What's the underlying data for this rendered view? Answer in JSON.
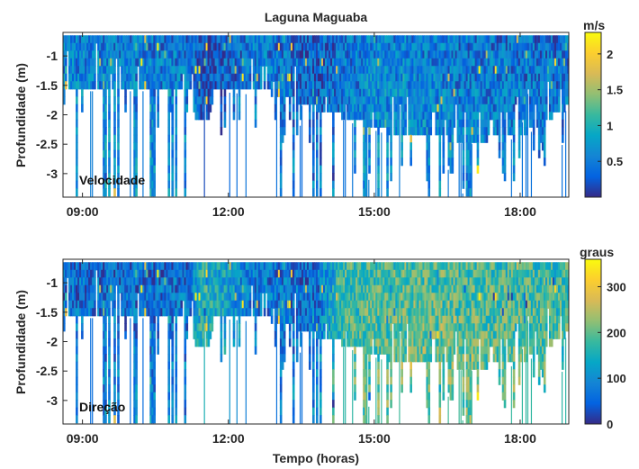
{
  "chart_data": [
    {
      "type": "heatmap",
      "title": "Laguna Maguaba",
      "xlabel": "",
      "ylabel": "Profundidade (m)",
      "annotation": "Velocidade",
      "x_ticks": [
        "09:00",
        "12:00",
        "15:00",
        "18:00"
      ],
      "x_tick_hours": [
        9,
        12,
        15,
        18
      ],
      "xlim_hours": [
        8.6,
        19.0
      ],
      "y_ticks": [
        -1,
        -1.5,
        -2,
        -2.5,
        -3
      ],
      "ylim": [
        -3.4,
        -0.6
      ],
      "colorbar": {
        "label": "m/s",
        "ticks": [
          0.5,
          1,
          1.5,
          2
        ],
        "range": [
          0,
          2.3
        ],
        "colormap": "parula"
      },
      "depth_extent_profile": [
        {
          "hour": 8.6,
          "min_depth": -1.6
        },
        {
          "hour": 11.2,
          "min_depth": -1.6
        },
        {
          "hour": 11.3,
          "min_depth": -2.1
        },
        {
          "hour": 11.6,
          "min_depth": -2.1
        },
        {
          "hour": 11.7,
          "min_depth": -1.6
        },
        {
          "hour": 13.0,
          "min_depth": -1.7
        },
        {
          "hour": 14.0,
          "min_depth": -2.0
        },
        {
          "hour": 15.5,
          "min_depth": -2.4
        },
        {
          "hour": 17.0,
          "min_depth": -2.5
        },
        {
          "hour": 18.0,
          "min_depth": -2.4
        },
        {
          "hour": 19.0,
          "min_depth": -1.9
        }
      ],
      "value_profile": [
        {
          "hour": 8.6,
          "value": 0.55
        },
        {
          "hour": 11.2,
          "value": 0.45
        },
        {
          "hour": 11.45,
          "value": 0.15
        },
        {
          "hour": 12.5,
          "value": 0.5
        },
        {
          "hour": 13.8,
          "value": 0.3
        },
        {
          "hour": 15.0,
          "value": 0.55
        },
        {
          "hour": 17.0,
          "value": 0.45
        },
        {
          "hour": 19.0,
          "value": 0.4
        }
      ]
    },
    {
      "type": "heatmap",
      "title": "",
      "xlabel": "Tempo (horas)",
      "ylabel": "Profundidade (m)",
      "annotation": "Direção",
      "x_ticks": [
        "09:00",
        "12:00",
        "15:00",
        "18:00"
      ],
      "x_tick_hours": [
        9,
        12,
        15,
        18
      ],
      "xlim_hours": [
        8.6,
        19.0
      ],
      "y_ticks": [
        -1,
        -1.5,
        -2,
        -2.5,
        -3
      ],
      "ylim": [
        -3.4,
        -0.6
      ],
      "colorbar": {
        "label": "graus",
        "ticks": [
          0,
          100,
          200,
          300
        ],
        "range": [
          0,
          360
        ],
        "colormap": "parula"
      },
      "depth_extent_profile": [
        {
          "hour": 8.6,
          "min_depth": -1.6
        },
        {
          "hour": 11.2,
          "min_depth": -1.6
        },
        {
          "hour": 11.3,
          "min_depth": -2.1
        },
        {
          "hour": 11.6,
          "min_depth": -2.1
        },
        {
          "hour": 11.7,
          "min_depth": -1.6
        },
        {
          "hour": 13.0,
          "min_depth": -1.7
        },
        {
          "hour": 14.0,
          "min_depth": -2.0
        },
        {
          "hour": 15.5,
          "min_depth": -2.4
        },
        {
          "hour": 17.0,
          "min_depth": -2.5
        },
        {
          "hour": 18.0,
          "min_depth": -2.4
        },
        {
          "hour": 19.0,
          "min_depth": -1.9
        }
      ],
      "value_profile": [
        {
          "hour": 8.6,
          "value": 60
        },
        {
          "hour": 11.2,
          "value": 60
        },
        {
          "hour": 11.45,
          "value": 160
        },
        {
          "hour": 12.5,
          "value": 70
        },
        {
          "hour": 13.8,
          "value": 60
        },
        {
          "hour": 14.3,
          "value": 170
        },
        {
          "hour": 16.0,
          "value": 190
        },
        {
          "hour": 19.0,
          "value": 170
        }
      ]
    }
  ]
}
